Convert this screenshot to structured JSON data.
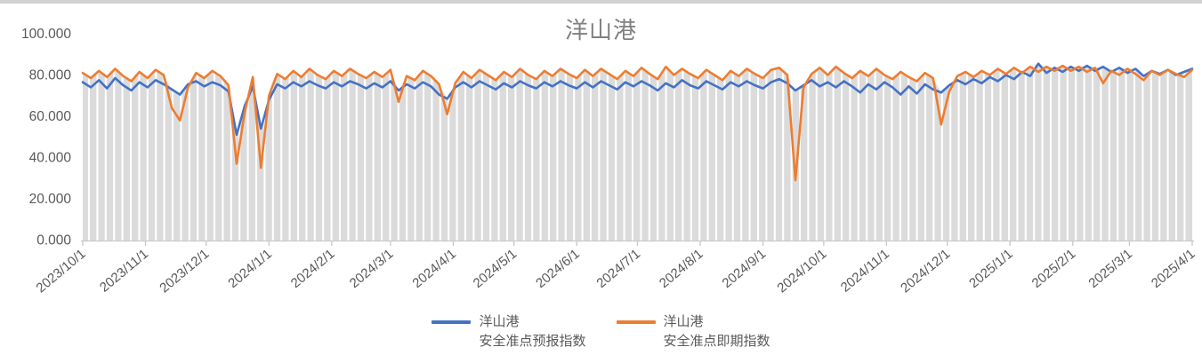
{
  "title": "洋山港",
  "colors": {
    "forecast_line": "#4472C4",
    "spot_line": "#ED7D31",
    "area_fill": "#DBDBDB",
    "area_stripe": "#FFFFFF",
    "axis_line": "#C9C9C9",
    "tick_label_text": "#595959",
    "title_text": "#808080",
    "top_strip": "#D2D2D2"
  },
  "legend": {
    "items": [
      {
        "label_line1": "洋山港",
        "label_line2": "安全准点预报指数",
        "color": "#4472C4"
      },
      {
        "label_line1": "洋山港",
        "label_line2": "安全准点即期指数",
        "color": "#ED7D31"
      }
    ]
  },
  "y_axis": {
    "tick_labels": [
      "100.000",
      "80.000",
      "60.000",
      "40.000",
      "20.000",
      "0.000"
    ],
    "tick_values": [
      100,
      80,
      60,
      40,
      20,
      0
    ]
  },
  "x_axis": {
    "tick_labels": [
      "2023/10/1",
      "2023/11/1",
      "2023/12/1",
      "2024/1/1",
      "2024/2/1",
      "2024/3/1",
      "2024/4/1",
      "2024/5/1",
      "2024/6/1",
      "2024/7/1",
      "2024/8/1",
      "2024/9/1",
      "2024/10/1",
      "2024/11/1",
      "2024/12/1",
      "2025/1/1",
      "2025/2/1",
      "2025/3/1",
      "2025/4/1"
    ],
    "tick_days": [
      0,
      31,
      61,
      92,
      123,
      152,
      183,
      213,
      244,
      274,
      305,
      336,
      366,
      397,
      427,
      458,
      489,
      517,
      548
    ]
  },
  "chart_data": {
    "type": "line",
    "title": "洋山港",
    "xlabel": "",
    "ylabel": "",
    "ylim": [
      0,
      100
    ],
    "x_unit": "days since 2023/10/1 (daily index series, sampled every 4 days)",
    "x_days": {
      "start": 0,
      "step": 4,
      "count": 138,
      "end": 548
    },
    "grid": false,
    "legend_position": "bottom",
    "background": "gray area under the upper envelope of the series with thin white vertical stripes (daily columns)",
    "series": [
      {
        "name": "洋山港 安全准点预报指数",
        "color": "#4472C4",
        "values": [
          76.5,
          74,
          77.5,
          73.5,
          78.5,
          75,
          72.5,
          76.5,
          74,
          77.5,
          75.5,
          73,
          70.5,
          75.5,
          77,
          74.5,
          76.5,
          75,
          72,
          51,
          65,
          74.5,
          54,
          68,
          75.5,
          73.5,
          76.5,
          74.5,
          77,
          75,
          73.5,
          76.5,
          74.5,
          77,
          75.5,
          73.5,
          76,
          74,
          77,
          72.5,
          75.5,
          73.5,
          76.5,
          74.5,
          70.5,
          68.5,
          74,
          76.5,
          74,
          77,
          75,
          73,
          76,
          74,
          77,
          75,
          73.5,
          76.5,
          74.5,
          77,
          75,
          73.5,
          76.5,
          74,
          77,
          75,
          73,
          76.5,
          74.5,
          77,
          75,
          72.5,
          76,
          74,
          77.5,
          75,
          73.5,
          77,
          75,
          73,
          76.5,
          74.5,
          77,
          75,
          73.5,
          76.5,
          78,
          76,
          72.5,
          75,
          77.5,
          74.5,
          76.5,
          74,
          77,
          74.5,
          71.5,
          75.5,
          73,
          76.5,
          74,
          70.5,
          74.5,
          71,
          75.5,
          73,
          71.5,
          75,
          77.5,
          75.5,
          78,
          76,
          79,
          77,
          80,
          78,
          81.5,
          79.5,
          85.5,
          81,
          83.5,
          81.5,
          84,
          82,
          84.5,
          82,
          84,
          81.5,
          83.5,
          81,
          83,
          79.5,
          82,
          80.5,
          82.5,
          80,
          81.5,
          83
        ]
      },
      {
        "name": "洋山港 安全准点即期指数",
        "color": "#ED7D31",
        "values": [
          81,
          78.5,
          82,
          79,
          83,
          79.5,
          77,
          81.5,
          78.5,
          82.5,
          80,
          64,
          58,
          74,
          81,
          78.5,
          82,
          79.5,
          75,
          37,
          62,
          79,
          35,
          70,
          80.5,
          78,
          82,
          79,
          83,
          80,
          78,
          82,
          79.5,
          83,
          80.5,
          78.5,
          81.5,
          79,
          82.5,
          67,
          79.5,
          77.5,
          82,
          79.5,
          75.5,
          61,
          76,
          81.5,
          78.5,
          82.5,
          80,
          77.5,
          81.5,
          79,
          83,
          80,
          78,
          82,
          79.5,
          83,
          80.5,
          78.5,
          82.5,
          79.5,
          83,
          80.5,
          78,
          82,
          79.5,
          83.5,
          80.5,
          78,
          84,
          80,
          83,
          80.5,
          78.5,
          82.5,
          80,
          77.5,
          82,
          79.5,
          83,
          80.5,
          78.5,
          82.5,
          83.5,
          80,
          29,
          74,
          80.5,
          83.5,
          80,
          84,
          81,
          78.5,
          82,
          79.5,
          83,
          80,
          78,
          81.5,
          79,
          77,
          81,
          78.5,
          56,
          72,
          79.5,
          81.5,
          79,
          82,
          80,
          83,
          80.5,
          83.5,
          81,
          84,
          81.5,
          84,
          82,
          84.5,
          82,
          84,
          81.5,
          83.5,
          76,
          82,
          80,
          83,
          80.5,
          77.5,
          82,
          80,
          82.5,
          80.5,
          79,
          82.5
        ]
      }
    ]
  }
}
